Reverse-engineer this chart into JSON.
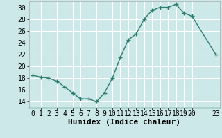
{
  "x": [
    0,
    1,
    2,
    3,
    4,
    5,
    6,
    7,
    8,
    9,
    10,
    11,
    12,
    13,
    14,
    15,
    16,
    17,
    18,
    19,
    20,
    23
  ],
  "y": [
    18.5,
    18.2,
    18.0,
    17.5,
    16.5,
    15.5,
    14.5,
    14.5,
    14.0,
    15.5,
    18.0,
    21.5,
    24.5,
    25.5,
    28.0,
    29.5,
    30.0,
    30.0,
    30.5,
    29.0,
    28.5,
    22.0
  ],
  "line_color": "#2d7d6e",
  "marker": "+",
  "marker_size": 4,
  "bg_color": "#cce8e8",
  "grid_color": "#ffffff",
  "xlabel": "Humidex (Indice chaleur)",
  "xlabel_fontsize": 8,
  "tick_fontsize": 7,
  "xlim": [
    -0.5,
    23.5
  ],
  "ylim": [
    13,
    31
  ],
  "yticks": [
    14,
    16,
    18,
    20,
    22,
    24,
    26,
    28,
    30
  ],
  "xticks": [
    0,
    1,
    2,
    3,
    4,
    5,
    6,
    7,
    8,
    9,
    10,
    11,
    12,
    13,
    14,
    15,
    16,
    17,
    18,
    19,
    20,
    23
  ]
}
